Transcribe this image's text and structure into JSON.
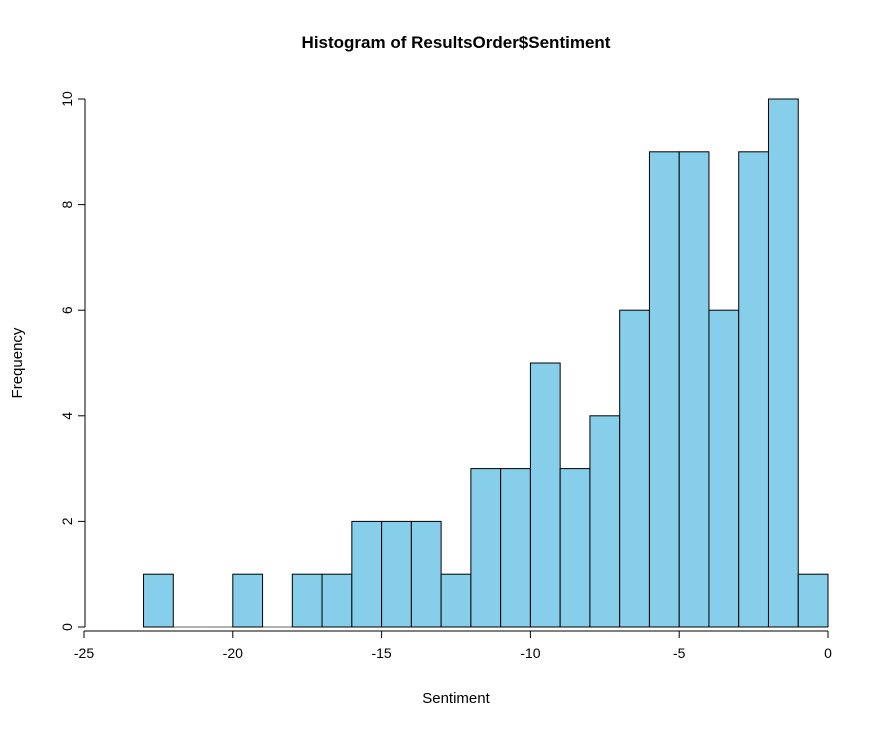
{
  "chart_data": {
    "type": "bar",
    "subtype": "histogram",
    "title": "Histogram of ResultsOrder$Sentiment",
    "xlabel": "Sentiment",
    "ylabel": "Frequency",
    "bin_start": -23,
    "bin_width": 1,
    "bins": [
      {
        "from": -23,
        "to": -22,
        "count": 1
      },
      {
        "from": -22,
        "to": -21,
        "count": 0
      },
      {
        "from": -21,
        "to": -20,
        "count": 0
      },
      {
        "from": -20,
        "to": -19,
        "count": 1
      },
      {
        "from": -19,
        "to": -18,
        "count": 0
      },
      {
        "from": -18,
        "to": -17,
        "count": 1
      },
      {
        "from": -17,
        "to": -16,
        "count": 1
      },
      {
        "from": -16,
        "to": -15,
        "count": 2
      },
      {
        "from": -15,
        "to": -14,
        "count": 2
      },
      {
        "from": -14,
        "to": -13,
        "count": 2
      },
      {
        "from": -13,
        "to": -12,
        "count": 1
      },
      {
        "from": -12,
        "to": -11,
        "count": 3
      },
      {
        "from": -11,
        "to": -10,
        "count": 3
      },
      {
        "from": -10,
        "to": -9,
        "count": 5
      },
      {
        "from": -9,
        "to": -8,
        "count": 3
      },
      {
        "from": -8,
        "to": -7,
        "count": 4
      },
      {
        "from": -7,
        "to": -6,
        "count": 6
      },
      {
        "from": -6,
        "to": -5,
        "count": 9
      },
      {
        "from": -5,
        "to": -4,
        "count": 9
      },
      {
        "from": -4,
        "to": -3,
        "count": 6
      },
      {
        "from": -3,
        "to": -2,
        "count": 9
      },
      {
        "from": -2,
        "to": -1,
        "count": 10
      },
      {
        "from": -1,
        "to": 0,
        "count": 1
      }
    ],
    "values": [
      1,
      0,
      0,
      1,
      0,
      1,
      1,
      2,
      2,
      2,
      1,
      3,
      3,
      5,
      3,
      4,
      6,
      9,
      9,
      6,
      9,
      10,
      1
    ],
    "xlim": [
      -25,
      0
    ],
    "ylim": [
      0,
      10
    ],
    "x_ticks": [
      -25,
      -20,
      -15,
      -10,
      -5,
      0
    ],
    "y_ticks": [
      0,
      2,
      4,
      6,
      8,
      10
    ],
    "grid": "off",
    "legend": "none",
    "bar_fill": "#87CEEB",
    "bar_stroke": "#000000",
    "axis_color": "#000000",
    "background": "#ffffff"
  }
}
